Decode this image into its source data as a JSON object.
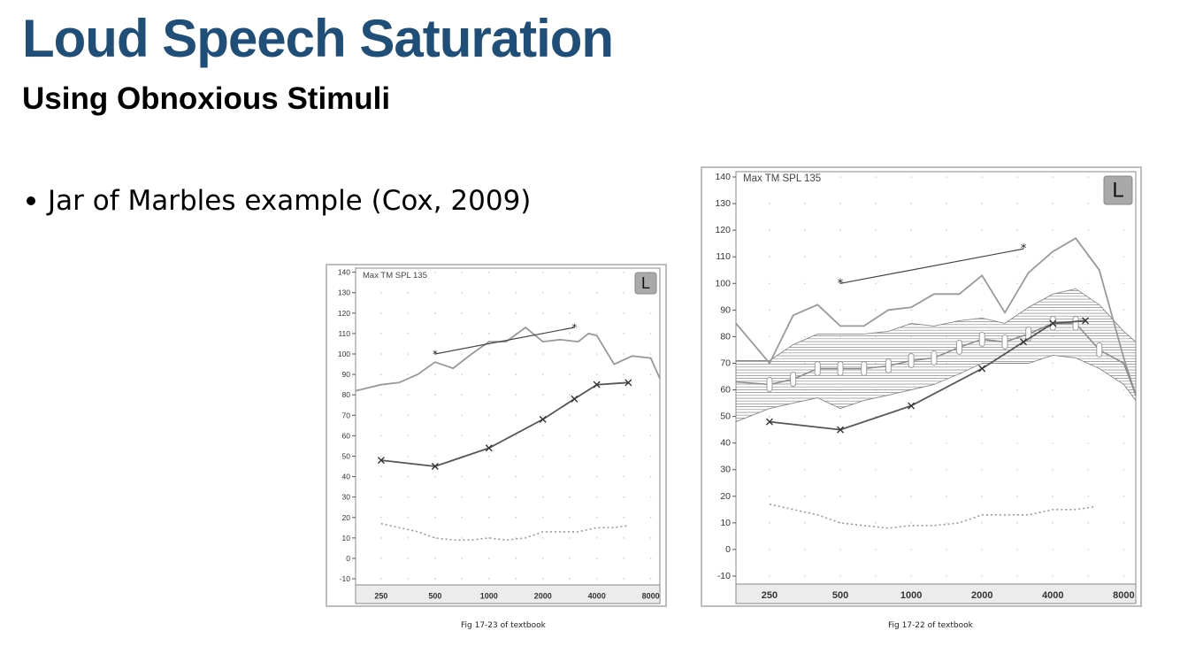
{
  "slide": {
    "title": "Loud Speech Saturation",
    "subtitle": "Using Obnoxious Stimuli",
    "bullet": "Jar of Marbles example (Cox, 2009)"
  },
  "captions": {
    "left": "Fig 17-23 of textbook",
    "right": "Fig 17-22 of textbook"
  },
  "chart_data": [
    {
      "type": "line",
      "label": "Max TM SPL 135",
      "ear": "L",
      "x_ticks": [
        250,
        500,
        1000,
        2000,
        4000,
        8000
      ],
      "x_scale": "log",
      "xlim": [
        180,
        9000
      ],
      "y_ticks": [
        -10,
        0,
        10,
        20,
        30,
        40,
        50,
        60,
        70,
        80,
        90,
        100,
        110,
        120,
        130,
        140
      ],
      "ylim": [
        -13,
        142
      ],
      "grid": "dotted",
      "series": [
        {
          "style": "output-curve",
          "x": [
            180,
            250,
            315,
            400,
            500,
            630,
            800,
            1000,
            1250,
            1600,
            2000,
            2500,
            3150,
            3600,
            4000,
            5000,
            6300,
            8000,
            9000
          ],
          "y": [
            82,
            85,
            86,
            90,
            96,
            93,
            100,
            106,
            106,
            113,
            106,
            107,
            106,
            110,
            109,
            95,
            99,
            98,
            88
          ]
        },
        {
          "style": "speech-points",
          "marker": "x",
          "x": [
            250,
            500,
            1000,
            2000,
            3000,
            4000,
            6000
          ],
          "y": [
            48,
            45,
            54,
            68,
            78,
            85,
            86
          ]
        },
        {
          "style": "peak-line",
          "marker": "*",
          "x": [
            500,
            3000
          ],
          "y": [
            100,
            113
          ]
        },
        {
          "style": "dotted-threshold",
          "x": [
            250,
            400,
            500,
            630,
            800,
            1000,
            1250,
            1600,
            2000,
            2500,
            3150,
            4000,
            5000,
            6000
          ],
          "y": [
            17,
            13,
            10,
            9,
            9,
            10,
            9,
            10,
            13,
            13,
            13,
            15,
            15,
            16
          ]
        }
      ]
    },
    {
      "type": "line",
      "label": "Max TM SPL 135",
      "ear": "L",
      "x_ticks": [
        250,
        500,
        1000,
        2000,
        4000,
        8000
      ],
      "x_scale": "log",
      "xlim": [
        180,
        9000
      ],
      "y_ticks": [
        -10,
        0,
        10,
        20,
        30,
        40,
        50,
        60,
        70,
        80,
        90,
        100,
        110,
        120,
        130,
        140
      ],
      "ylim": [
        -13,
        142
      ],
      "grid": "dotted",
      "band": {
        "x": [
          180,
          250,
          315,
          400,
          500,
          630,
          800,
          1000,
          1250,
          1600,
          2000,
          2500,
          3150,
          4000,
          5000,
          6300,
          8000,
          9000
        ],
        "upper": [
          71,
          71,
          77,
          81,
          81,
          81,
          82,
          85,
          84,
          86,
          87,
          85,
          91,
          96,
          98,
          92,
          82,
          78
        ],
        "lower": [
          48,
          53,
          55,
          57,
          53,
          56,
          58,
          60,
          62,
          66,
          70,
          70,
          70,
          73,
          72,
          68,
          62,
          56
        ]
      },
      "series": [
        {
          "style": "max-output",
          "x": [
            180,
            250,
            315,
            400,
            500,
            630,
            800,
            1000,
            1250,
            1600,
            2000,
            2500,
            3150,
            4000,
            5000,
            6300,
            8000,
            9000
          ],
          "y": [
            85,
            70,
            88,
            92,
            84,
            84,
            90,
            91,
            96,
            96,
            103,
            89,
            104,
            112,
            117,
            105,
            72,
            58
          ]
        },
        {
          "style": "mid-curve",
          "x": [
            180,
            250,
            315,
            400,
            500,
            630,
            800,
            1000,
            1250,
            1600,
            2000,
            2500,
            3150,
            4000,
            5000,
            6300,
            8000,
            9000
          ],
          "y": [
            63,
            62,
            64,
            68,
            68,
            68,
            69,
            71,
            72,
            76,
            79,
            78,
            81,
            85,
            85,
            75,
            70,
            58
          ]
        },
        {
          "style": "speech-points",
          "marker": "x",
          "x": [
            250,
            500,
            1000,
            2000,
            3000,
            4000,
            5500
          ],
          "y": [
            48,
            45,
            54,
            68,
            78,
            85,
            86
          ]
        },
        {
          "style": "peak-line",
          "marker": "*",
          "x": [
            500,
            3000
          ],
          "y": [
            100,
            113
          ]
        },
        {
          "style": "dotted-threshold",
          "x": [
            250,
            400,
            500,
            630,
            800,
            1000,
            1250,
            1600,
            2000,
            2500,
            3150,
            4000,
            5000,
            6000
          ],
          "y": [
            17,
            13,
            10,
            9,
            8,
            9,
            9,
            10,
            13,
            13,
            13,
            15,
            15,
            16
          ]
        }
      ]
    }
  ]
}
